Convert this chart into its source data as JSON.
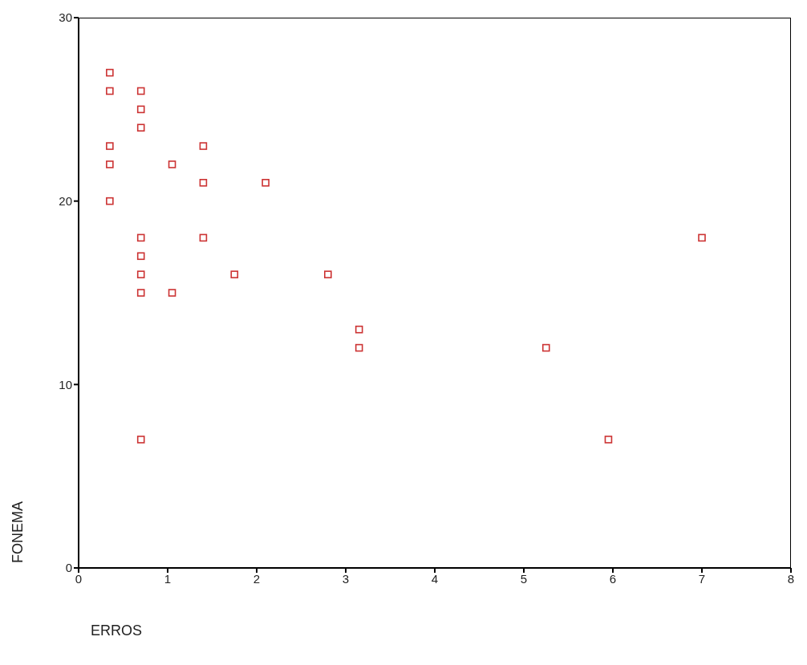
{
  "chart_data": {
    "type": "scatter",
    "xlabel": "ERROS",
    "ylabel": "FONEMA",
    "x": [
      0.35,
      0.35,
      0.35,
      0.35,
      0.35,
      0.7,
      0.7,
      0.7,
      0.7,
      0.7,
      0.7,
      0.7,
      0.7,
      1.05,
      1.05,
      1.4,
      1.4,
      1.4,
      1.75,
      2.1,
      2.8,
      3.15,
      3.15,
      5.25,
      5.95,
      7
    ],
    "values": [
      27,
      26,
      23,
      22,
      20,
      26,
      25,
      24,
      18,
      17,
      16,
      15,
      7,
      22,
      15,
      23,
      21,
      18,
      16,
      21,
      16,
      13,
      12,
      12,
      7,
      18
    ],
    "color": "#cc3333",
    "marker": "square",
    "xlim": [
      0,
      8
    ],
    "xticks": [
      0,
      1,
      2,
      3,
      4,
      5,
      6,
      7,
      8
    ],
    "ylim": [
      0,
      30
    ],
    "yticks": [
      0,
      10,
      20,
      30
    ],
    "grid": false
  }
}
